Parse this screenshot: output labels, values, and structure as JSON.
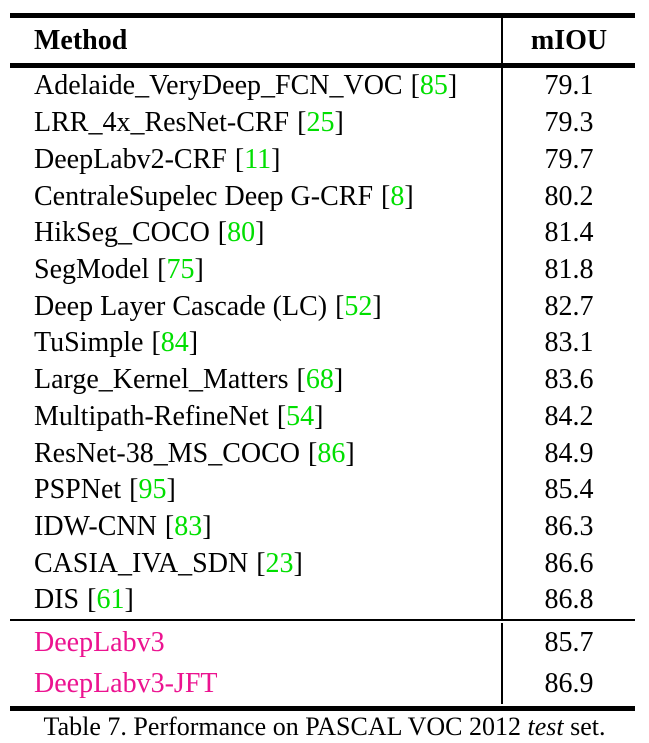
{
  "colors": {
    "citation_green": "#00DF00",
    "highlight_magenta": "#EC1390",
    "text_black": "#000000"
  },
  "table": {
    "header": {
      "method": "Method",
      "miou": "mIOU"
    },
    "cite_prefix": "[",
    "cite_suffix": "]",
    "sections": [
      {
        "name": "published-methods",
        "highlight": false,
        "rows": [
          {
            "method": "Adelaide_VeryDeep_FCN_VOC",
            "cite": "85",
            "miou": "79.1"
          },
          {
            "method": "LRR_4x_ResNet-CRF",
            "cite": "25",
            "miou": "79.3"
          },
          {
            "method": "DeepLabv2-CRF",
            "cite": "11",
            "miou": "79.7"
          },
          {
            "method": "CentraleSupelec Deep G-CRF",
            "cite": "8",
            "miou": "80.2"
          },
          {
            "method": "HikSeg_COCO",
            "cite": "80",
            "miou": "81.4"
          },
          {
            "method": "SegModel",
            "cite": "75",
            "miou": "81.8"
          },
          {
            "method": "Deep Layer Cascade (LC)",
            "cite": "52",
            "miou": "82.7"
          },
          {
            "method": "TuSimple",
            "cite": "84",
            "miou": "83.1"
          },
          {
            "method": "Large_Kernel_Matters",
            "cite": "68",
            "miou": "83.6"
          },
          {
            "method": "Multipath-RefineNet",
            "cite": "54",
            "miou": "84.2"
          },
          {
            "method": "ResNet-38_MS_COCO",
            "cite": "86",
            "miou": "84.9"
          },
          {
            "method": "PSPNet",
            "cite": "95",
            "miou": "85.4"
          },
          {
            "method": "IDW-CNN",
            "cite": "83",
            "miou": "86.3"
          },
          {
            "method": "CASIA_IVA_SDN",
            "cite": "23",
            "miou": "86.6"
          },
          {
            "method": "DIS",
            "cite": "61",
            "miou": "86.8"
          }
        ]
      },
      {
        "name": "deeplab-methods",
        "highlight": true,
        "rows": [
          {
            "method": "DeepLabv3",
            "cite": null,
            "miou": "85.7"
          },
          {
            "method": "DeepLabv3-JFT",
            "cite": null,
            "miou": "86.9"
          }
        ]
      }
    ]
  },
  "caption": {
    "prefix": "Table 7. Performance on PASCAL VOC 2012 ",
    "italic": "test",
    "suffix": " set."
  }
}
